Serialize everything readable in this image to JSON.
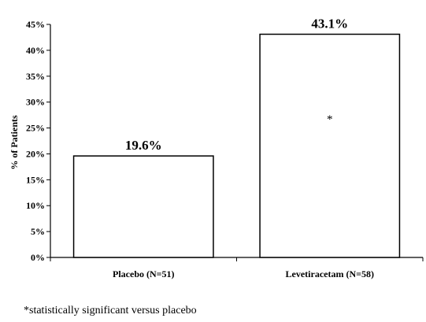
{
  "chart_data": {
    "type": "bar",
    "categories": [
      "Placebo (N=51)",
      "Levetiracetam (N=58)"
    ],
    "values": [
      19.6,
      43.1
    ],
    "data_labels": [
      "19.6%",
      "43.1%"
    ],
    "ylabel": "% of Patients",
    "xlabel": "",
    "ylim": [
      0,
      45
    ],
    "yticks": [
      0,
      5,
      10,
      15,
      20,
      25,
      30,
      35,
      40,
      45
    ],
    "ytick_labels": [
      "0%",
      "5%",
      "10%",
      "15%",
      "20%",
      "25%",
      "30%",
      "35%",
      "40%",
      "45%"
    ],
    "grid": false,
    "bar_fill": "#ffffff",
    "bar_stroke": "#000000",
    "annotations": [
      {
        "text": "*",
        "category": "Levetiracetam (N=58)",
        "y": 27.5
      }
    ],
    "footnote": "*statistically significant versus placebo"
  }
}
